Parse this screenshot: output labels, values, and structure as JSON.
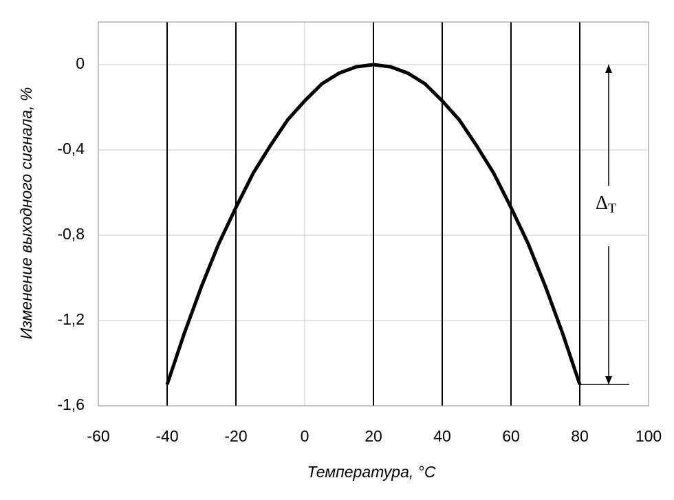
{
  "chart_data": {
    "type": "line",
    "x_label": "Температура, °C",
    "y_label": "Изменение выходного сигнала, %",
    "x": [
      -40,
      -35,
      -30,
      -25,
      -20,
      -15,
      -10,
      -5,
      0,
      5,
      10,
      15,
      20,
      25,
      30,
      35,
      40,
      45,
      50,
      55,
      60,
      65,
      70,
      75,
      80
    ],
    "values": [
      -1.5,
      -1.26,
      -1.04,
      -0.84,
      -0.67,
      -0.51,
      -0.38,
      -0.26,
      -0.17,
      -0.09,
      -0.04,
      -0.01,
      0,
      -0.01,
      -0.04,
      -0.09,
      -0.17,
      -0.26,
      -0.38,
      -0.51,
      -0.67,
      -0.84,
      -1.04,
      -1.26,
      -1.5
    ],
    "color": "#000000",
    "xlim": [
      -60,
      100
    ],
    "xticks": [
      -60,
      -40,
      -20,
      0,
      20,
      40,
      60,
      80,
      100
    ],
    "ylim": [
      -1.6,
      0.2
    ],
    "yticks": [
      {
        "value": 0,
        "label": "0"
      },
      {
        "value": -0.4,
        "label": "-0,4"
      },
      {
        "value": -0.8,
        "label": "-0,8"
      },
      {
        "value": -1.2,
        "label": "-1,2"
      },
      {
        "value": -1.6,
        "label": "-1,6"
      }
    ],
    "vlines": [
      -40,
      -20,
      20,
      40,
      60,
      80
    ],
    "grid": true,
    "annotation_symbol": "Δ",
    "annotation_subscript": "T"
  }
}
